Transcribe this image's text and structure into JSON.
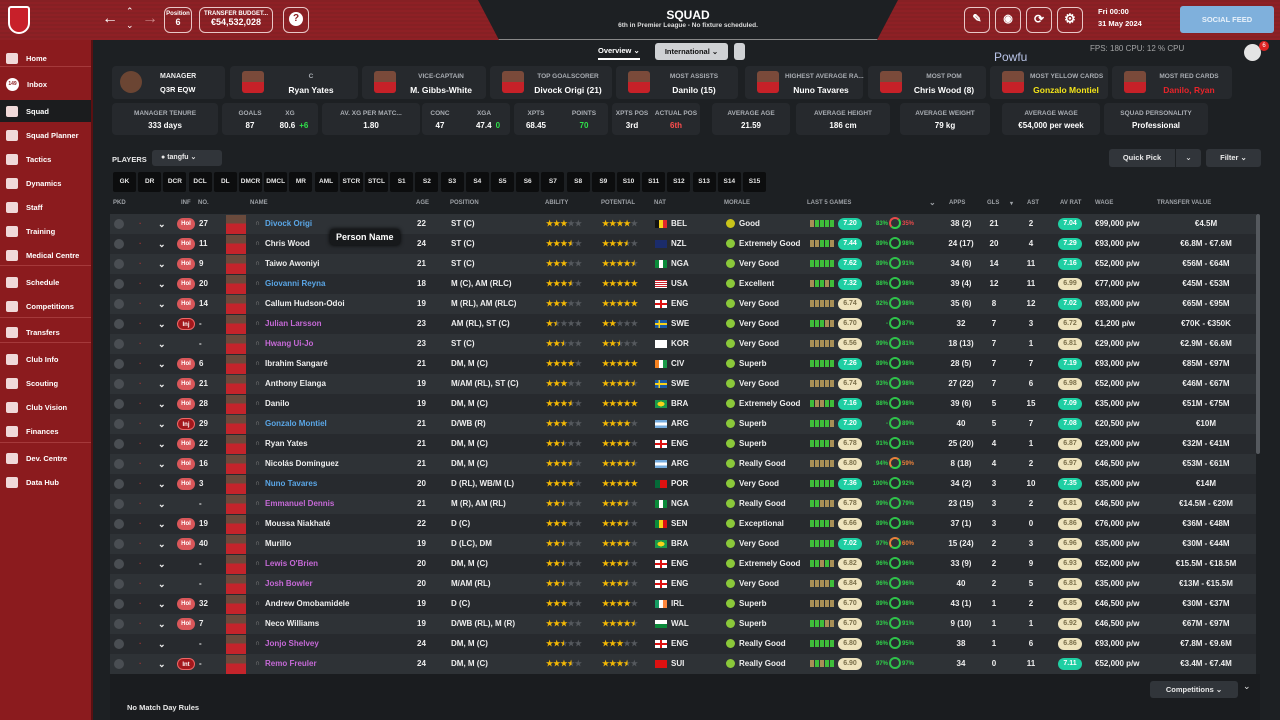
{
  "header": {
    "position_label": "Position",
    "position_value": "6",
    "budget_label": "TRANSFER BUDGET...",
    "budget_value": "€54,532,028",
    "help": "?",
    "title": "SQUAD",
    "subtitle": "6th in Premier League - No fixture scheduled.",
    "date_day": "Fri 00:00",
    "date": "31 May 2024",
    "overlay": "FPS: 180  CPU: 12 % CPU",
    "social_feed": "SOCIAL FEED",
    "notif_count": "6",
    "overlay_name": "Powfu"
  },
  "sidebar": {
    "inbox_badge": "149",
    "items": [
      "Home",
      "Inbox",
      "Squad",
      "Squad Planner",
      "Tactics",
      "Dynamics",
      "Staff",
      "Training",
      "Medical Centre",
      "Schedule",
      "Competitions",
      "Transfers",
      "Club Info",
      "Scouting",
      "Club Vision",
      "Finances",
      "Dev. Centre",
      "Data Hub"
    ]
  },
  "view": {
    "overview": "Overview ⌄",
    "international": "International ⌄"
  },
  "cards": [
    {
      "t": "MANAGER",
      "v": "Q3R EQW"
    },
    {
      "t": "C",
      "v": "Ryan Yates"
    },
    {
      "t": "VICE-CAPTAIN",
      "v": "M. Gibbs-White"
    },
    {
      "t": "TOP GOALSCORER",
      "v": "Divock Origi (21)"
    },
    {
      "t": "MOST ASSISTS",
      "v": "Danilo (15)"
    },
    {
      "t": "HIGHEST AVERAGE RA...",
      "v": "Nuno Tavares"
    },
    {
      "t": "MOST POM",
      "v": "Chris Wood (8)"
    },
    {
      "t": "MOST YELLOW CARDS",
      "v": "Gonzalo Montiel"
    },
    {
      "t": "MOST RED CARDS",
      "v": "Danilo, Ryan"
    }
  ],
  "stats": {
    "tenure_t": "MANAGER TENURE",
    "tenure": "333 days",
    "goals_t": "GOALS",
    "goals": "87",
    "xg_t": "XG",
    "xg": "80.6",
    "xg_diff": "+6",
    "avxg_t": "AV. XG PER MATC...",
    "avxg": "1.80",
    "conc_t": "CONC",
    "conc": "47",
    "xga_t": "XGA",
    "xga": "47.4",
    "xga_diff": "0",
    "xpts_t": "XPTS",
    "xpts": "68.45",
    "points_t": "POINTS",
    "points": "70",
    "xptspos_t": "XPTS POS",
    "xptspos": "3rd",
    "actpos_t": "ACTUAL POS",
    "actpos": "6th",
    "age_t": "AVERAGE AGE",
    "age": "21.59",
    "height_t": "AVERAGE HEIGHT",
    "height": "186 cm",
    "weight_t": "AVERAGE WEIGHT",
    "weight": "79 kg",
    "wage_t": "AVERAGE WAGE",
    "wage": "€54,000 per week",
    "pers_t": "SQUAD PERSONALITY",
    "pers": "Professional"
  },
  "players_label": "PLAYERS",
  "view_select": "tangfu ⌄",
  "quick_pick": "Quick Pick",
  "filter": "Filter ⌄",
  "positions": [
    "GK",
    "DR",
    "DCR",
    "DCL",
    "DL",
    "DMCR",
    "DMCL",
    "MR",
    "AML",
    "STCR",
    "STCL",
    "S1",
    "S2",
    "S3",
    "S4",
    "S5",
    "S6",
    "S7",
    "S8",
    "S9",
    "S10",
    "S11",
    "S12",
    "S13",
    "S14",
    "S15"
  ],
  "columns": {
    "pkd": "PKD",
    "inf": "INF",
    "no": "NO.",
    "name": "NAME",
    "age": "AGE",
    "position": "POSITION",
    "ability": "ABILITY",
    "potential": "POTENTIAL",
    "nat": "NAT",
    "morale": "MORALE",
    "last5": "LAST 5 GAMES",
    "apps": "APPS",
    "gls": "GLS",
    "ast": "AST",
    "avrat": "AV RAT",
    "wage": "WAGE",
    "value": "TRANSFER VALUE"
  },
  "tooltip": "Person Name",
  "colors": {
    "accent": "#8b1b1e",
    "high_rating": "#1fcfa3",
    "low_rating": "#efe4bd",
    "name_blue": "#5aa6e6",
    "name_purple": "#c569d6"
  },
  "players": [
    {
      "inf": "Hol",
      "no": "27",
      "name": "Divock Origi",
      "nc": "blue",
      "age": "22",
      "pos": "ST (C)",
      "ab": 3,
      "pot": 4,
      "nat": "BEL",
      "mor": "Good",
      "form": "tgggg",
      "l5": "7.20",
      "p1": "83%",
      "p2": "35%",
      "apps": "38 (2)",
      "gls": "21",
      "ast": "2",
      "avr": "7.04",
      "wage": "€99,000 p/w",
      "val": "€4.5M"
    },
    {
      "inf": "Hol",
      "no": "11",
      "name": "Chris Wood",
      "nc": "",
      "age": "24",
      "pos": "ST (C)",
      "ab": 3.5,
      "pot": 3.5,
      "nat": "NZL",
      "mor": "Extremely Good",
      "form": "ttggt",
      "l5": "7.44",
      "p1": "89%",
      "p2": "98%",
      "apps": "24 (17)",
      "gls": "20",
      "ast": "4",
      "avr": "7.29",
      "wage": "€93,000 p/w",
      "val": "€6.8M - €7.6M"
    },
    {
      "inf": "Hol",
      "no": "9",
      "name": "Taiwo Awoniyi",
      "nc": "",
      "age": "21",
      "pos": "ST (C)",
      "ab": 3,
      "pot": 4.5,
      "nat": "NGA",
      "mor": "Very Good",
      "form": "ggggg",
      "l5": "7.62",
      "p1": "89%",
      "p2": "91%",
      "apps": "34 (6)",
      "gls": "14",
      "ast": "11",
      "avr": "7.16",
      "wage": "€52,000 p/w",
      "val": "€56M - €64M"
    },
    {
      "inf": "Hol",
      "no": "20",
      "name": "Giovanni Reyna",
      "nc": "blue",
      "age": "18",
      "pos": "M (C), AM (RLC)",
      "ab": 3.5,
      "pot": 5,
      "nat": "USA",
      "mor": "Excellent",
      "form": "tggtg",
      "l5": "7.32",
      "p1": "88%",
      "p2": "98%",
      "apps": "39 (4)",
      "gls": "12",
      "ast": "11",
      "avr": "6.99",
      "wage": "€77,000 p/w",
      "val": "€45M - €53M"
    },
    {
      "inf": "Hol",
      "no": "14",
      "name": "Callum Hudson-Odoi",
      "nc": "",
      "age": "19",
      "pos": "M (RL), AM (RLC)",
      "ab": 3,
      "pot": 5,
      "nat": "ENG",
      "mor": "Very Good",
      "form": "ttttt",
      "l5": "6.74",
      "p1": "92%",
      "p2": "98%",
      "apps": "35 (6)",
      "gls": "8",
      "ast": "12",
      "avr": "7.02",
      "wage": "€93,000 p/w",
      "val": "€65M - €95M"
    },
    {
      "inf": "Inj",
      "no": "-",
      "name": "Julian Larsson",
      "nc": "purple",
      "age": "23",
      "pos": "AM (RL), ST (C)",
      "ab": 1.5,
      "pot": 2,
      "nat": "SWE",
      "mor": "Very Good",
      "form": "gggtt",
      "l5": "6.70",
      "p1": "-",
      "p2": "87%",
      "apps": "32",
      "gls": "7",
      "ast": "3",
      "avr": "6.72",
      "wage": "€1,200 p/w",
      "val": "€70K - €350K"
    },
    {
      "inf": "",
      "no": "-",
      "name": "Hwang Ui-Jo",
      "nc": "purple",
      "age": "23",
      "pos": "ST (C)",
      "ab": 2.5,
      "pot": 2.5,
      "nat": "KOR",
      "mor": "Very Good",
      "form": "ttttt",
      "l5": "6.56",
      "p1": "99%",
      "p2": "81%",
      "apps": "18 (13)",
      "gls": "7",
      "ast": "1",
      "avr": "6.81",
      "wage": "€29,000 p/w",
      "val": "€2.9M - €6.6M"
    },
    {
      "inf": "Hol",
      "no": "6",
      "name": "Ibrahim Sangaré",
      "nc": "",
      "age": "21",
      "pos": "DM, M (C)",
      "ab": 4,
      "pot": 5,
      "nat": "CIV",
      "mor": "Superb",
      "form": "ggggg",
      "l5": "7.26",
      "p1": "89%",
      "p2": "98%",
      "apps": "28 (5)",
      "gls": "7",
      "ast": "7",
      "avr": "7.19",
      "wage": "€93,000 p/w",
      "val": "€85M - €97M"
    },
    {
      "inf": "Hol",
      "no": "21",
      "name": "Anthony Elanga",
      "nc": "",
      "age": "19",
      "pos": "M/AM (RL), ST (C)",
      "ab": 3,
      "pot": 4.5,
      "nat": "SWE",
      "mor": "Very Good",
      "form": "ttttt",
      "l5": "6.74",
      "p1": "93%",
      "p2": "98%",
      "apps": "27 (22)",
      "gls": "7",
      "ast": "6",
      "avr": "6.98",
      "wage": "€52,000 p/w",
      "val": "€46M - €67M"
    },
    {
      "inf": "Hol",
      "no": "28",
      "name": "Danilo",
      "nc": "",
      "age": "19",
      "pos": "DM, M (C)",
      "ab": 3.5,
      "pot": 5,
      "nat": "BRA",
      "mor": "Extremely Good",
      "form": "gttgg",
      "l5": "7.16",
      "p1": "88%",
      "p2": "98%",
      "apps": "39 (6)",
      "gls": "5",
      "ast": "15",
      "avr": "7.09",
      "wage": "€35,000 p/w",
      "val": "€51M - €75M"
    },
    {
      "inf": "Inj",
      "no": "29",
      "name": "Gonzalo Montiel",
      "nc": "blue",
      "age": "21",
      "pos": "D/WB (R)",
      "ab": 3,
      "pot": 4,
      "nat": "ARG",
      "mor": "Superb",
      "form": "ggggt",
      "l5": "7.20",
      "p1": "-",
      "p2": "89%",
      "apps": "40",
      "gls": "5",
      "ast": "7",
      "avr": "7.08",
      "wage": "€20,500 p/w",
      "val": "€10M"
    },
    {
      "inf": "Hol",
      "no": "22",
      "name": "Ryan Yates",
      "nc": "",
      "age": "21",
      "pos": "DM, M (C)",
      "ab": 2.5,
      "pot": 4,
      "nat": "ENG",
      "mor": "Superb",
      "form": "ggggt",
      "l5": "6.78",
      "p1": "91%",
      "p2": "81%",
      "apps": "25 (20)",
      "gls": "4",
      "ast": "1",
      "avr": "6.87",
      "wage": "€29,000 p/w",
      "val": "€32M - €41M"
    },
    {
      "inf": "Hol",
      "no": "16",
      "name": "Nicolás Domínguez",
      "nc": "",
      "age": "21",
      "pos": "DM, M (C)",
      "ab": 3.5,
      "pot": 4.5,
      "nat": "ARG",
      "mor": "Really Good",
      "form": "ttttt",
      "l5": "6.80",
      "p1": "94%",
      "p2": "59%",
      "apps": "8 (18)",
      "gls": "4",
      "ast": "2",
      "avr": "6.97",
      "wage": "€46,500 p/w",
      "val": "€53M - €61M"
    },
    {
      "inf": "Hol",
      "no": "3",
      "name": "Nuno Tavares",
      "nc": "blue",
      "age": "20",
      "pos": "D (RL), WB/M (L)",
      "ab": 4,
      "pot": 5,
      "nat": "POR",
      "mor": "Very Good",
      "form": "ggggg",
      "l5": "7.36",
      "p1": "100%",
      "p2": "92%",
      "apps": "34 (2)",
      "gls": "3",
      "ast": "10",
      "avr": "7.35",
      "wage": "€35,000 p/w",
      "val": "€14M"
    },
    {
      "inf": "",
      "no": "-",
      "name": "Emmanuel Dennis",
      "nc": "purple",
      "age": "21",
      "pos": "M (R), AM (RL)",
      "ab": 2.5,
      "pot": 3.5,
      "nat": "NGA",
      "mor": "Really Good",
      "form": "ggttt",
      "l5": "6.78",
      "p1": "99%",
      "p2": "79%",
      "apps": "23 (15)",
      "gls": "3",
      "ast": "2",
      "avr": "6.81",
      "wage": "€46,500 p/w",
      "val": "€14.5M - €20M"
    },
    {
      "inf": "Hol",
      "no": "19",
      "name": "Moussa Niakhaté",
      "nc": "",
      "age": "22",
      "pos": "D (C)",
      "ab": 3,
      "pot": 3.5,
      "nat": "SEN",
      "mor": "Exceptional",
      "form": "ggggt",
      "l5": "6.66",
      "p1": "89%",
      "p2": "98%",
      "apps": "37 (1)",
      "gls": "3",
      "ast": "0",
      "avr": "6.86",
      "wage": "€76,000 p/w",
      "val": "€36M - €48M"
    },
    {
      "inf": "Hol",
      "no": "40",
      "name": "Murillo",
      "nc": "",
      "age": "19",
      "pos": "D (LC), DM",
      "ab": 2.5,
      "pot": 4,
      "nat": "BRA",
      "mor": "Very Good",
      "form": "ggggg",
      "l5": "7.02",
      "p1": "97%",
      "p2": "60%",
      "apps": "15 (24)",
      "gls": "2",
      "ast": "3",
      "avr": "6.96",
      "wage": "€35,000 p/w",
      "val": "€30M - €44M"
    },
    {
      "inf": "",
      "no": "-",
      "name": "Lewis O'Brien",
      "nc": "purple",
      "age": "20",
      "pos": "DM, M (C)",
      "ab": 2.5,
      "pot": 3.5,
      "nat": "ENG",
      "mor": "Extremely Good",
      "form": "ggtgt",
      "l5": "6.82",
      "p1": "96%",
      "p2": "96%",
      "apps": "33 (9)",
      "gls": "2",
      "ast": "9",
      "avr": "6.93",
      "wage": "€52,000 p/w",
      "val": "€15.5M - €18.5M"
    },
    {
      "inf": "",
      "no": "-",
      "name": "Josh Bowler",
      "nc": "purple",
      "age": "20",
      "pos": "M/AM (RL)",
      "ab": 2.5,
      "pot": 3.5,
      "nat": "ENG",
      "mor": "Very Good",
      "form": "ttttg",
      "l5": "6.84",
      "p1": "96%",
      "p2": "96%",
      "apps": "40",
      "gls": "2",
      "ast": "5",
      "avr": "6.81",
      "wage": "€35,000 p/w",
      "val": "€13M - €15.5M"
    },
    {
      "inf": "Hol",
      "no": "32",
      "name": "Andrew Omobamidele",
      "nc": "",
      "age": "19",
      "pos": "D (C)",
      "ab": 3,
      "pot": 4,
      "nat": "IRL",
      "mor": "Superb",
      "form": "ttttt",
      "l5": "6.70",
      "p1": "89%",
      "p2": "98%",
      "apps": "43 (1)",
      "gls": "1",
      "ast": "2",
      "avr": "6.85",
      "wage": "€46,500 p/w",
      "val": "€30M - €37M"
    },
    {
      "inf": "Hol",
      "no": "7",
      "name": "Neco Williams",
      "nc": "",
      "age": "19",
      "pos": "D/WB (RL), M (R)",
      "ab": 3,
      "pot": 4.5,
      "nat": "WAL",
      "mor": "Superb",
      "form": "gggtt",
      "l5": "6.70",
      "p1": "93%",
      "p2": "91%",
      "apps": "9 (10)",
      "gls": "1",
      "ast": "1",
      "avr": "6.92",
      "wage": "€46,500 p/w",
      "val": "€67M - €97M"
    },
    {
      "inf": "",
      "no": "-",
      "name": "Jonjo Shelvey",
      "nc": "purple",
      "age": "24",
      "pos": "DM, M (C)",
      "ab": 2.5,
      "pot": 3,
      "nat": "ENG",
      "mor": "Really Good",
      "form": "ggggg",
      "l5": "6.80",
      "p1": "96%",
      "p2": "95%",
      "apps": "38",
      "gls": "1",
      "ast": "6",
      "avr": "6.86",
      "wage": "€93,000 p/w",
      "val": "€7.8M - €9.6M"
    },
    {
      "inf": "Int",
      "no": "-",
      "name": "Remo Freuler",
      "nc": "purple",
      "age": "24",
      "pos": "DM, M (C)",
      "ab": 3.5,
      "pot": 3.5,
      "nat": "SUI",
      "mor": "Really Good",
      "form": "tgtgg",
      "l5": "6.90",
      "p1": "97%",
      "p2": "97%",
      "apps": "34",
      "gls": "0",
      "ast": "11",
      "avr": "7.11",
      "wage": "€52,000 p/w",
      "val": "€3.4M - €7.4M"
    }
  ],
  "footer": {
    "competitions": "Competitions ⌄",
    "match_day_rules": "No Match Day Rules"
  }
}
